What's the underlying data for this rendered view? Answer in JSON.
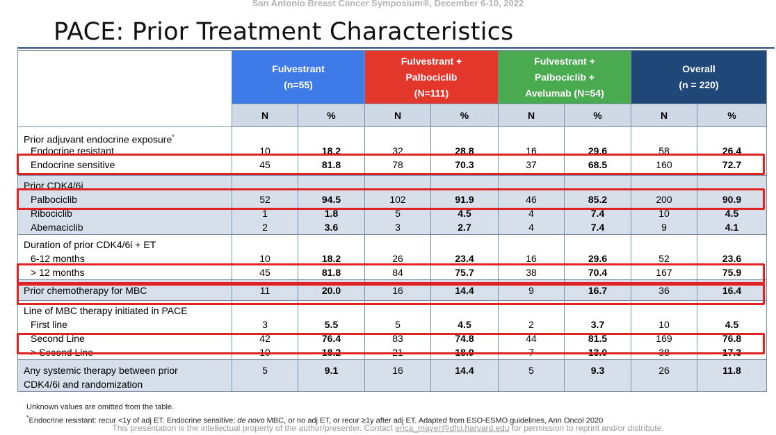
{
  "conference": "San Antonio Breast Cancer Symposium®, December 6-10, 2022",
  "title": "PACE: Prior Treatment Characteristics",
  "groups": [
    {
      "lines": [
        "Fulvestrant",
        "(n=55)"
      ],
      "color": "#3f7be8"
    },
    {
      "lines": [
        "Fulvestrant  +",
        "Palbociclib",
        "(N=111)"
      ],
      "color": "#e2372a"
    },
    {
      "lines": [
        "Fulvestrant +",
        "Palbociclib +",
        "Avelumab (N=54)"
      ],
      "color": "#4aaa4f"
    },
    {
      "lines": [
        "Overall",
        "(n = 220)"
      ],
      "color": "#1f4778"
    }
  ],
  "subheaders": [
    "N",
    "%",
    "N",
    "%",
    "N",
    "%",
    "N",
    "%"
  ],
  "sections": [
    {
      "header": "Prior adjuvant endocrine exposure",
      "header_sup": "*",
      "shade": "white",
      "rows": [
        {
          "label": "Endocrine resistant",
          "values": [
            "10",
            "18.2",
            "32",
            "28.8",
            "16",
            "29.6",
            "58",
            "26.4"
          ]
        },
        {
          "label": "Endocrine sensitive",
          "values": [
            "45",
            "81.8",
            "78",
            "70.3",
            "37",
            "68.5",
            "160",
            "72.7"
          ]
        }
      ]
    },
    {
      "header": "Prior CDK4/6i",
      "shade": "grey",
      "rows": [
        {
          "label": "Palbociclib",
          "values": [
            "52",
            "94.5",
            "102",
            "91.9",
            "46",
            "85.2",
            "200",
            "90.9"
          ]
        },
        {
          "label": "Ribociclib",
          "values": [
            "1",
            "1.8",
            "5",
            "4.5",
            "4",
            "7.4",
            "10",
            "4.5"
          ]
        },
        {
          "label": "Abemaciclib",
          "values": [
            "2",
            "3.6",
            "3",
            "2.7",
            "4",
            "7.4",
            "9",
            "4.1"
          ]
        }
      ]
    },
    {
      "header": "Duration of prior CDK4/6i + ET",
      "shade": "white",
      "rows": [
        {
          "label": "6-12 months",
          "values": [
            "10",
            "18.2",
            "26",
            "23.4",
            "16",
            "29.6",
            "52",
            "23.6"
          ]
        },
        {
          "label": "> 12 months",
          "values": [
            "45",
            "81.8",
            "84",
            "75.7",
            "38",
            "70.4",
            "167",
            "75.9"
          ]
        }
      ]
    },
    {
      "header": "",
      "shade": "grey",
      "rows": [
        {
          "label": "Prior chemotherapy for MBC",
          "values": [
            "11",
            "20.0",
            "16",
            "14.4",
            "9",
            "16.7",
            "36",
            "16.4"
          ],
          "flush": true
        }
      ]
    },
    {
      "header": "Line of MBC therapy initiated in PACE",
      "shade": "white",
      "rows": [
        {
          "label": "First line",
          "values": [
            "3",
            "5.5",
            "5",
            "4.5",
            "2",
            "3.7",
            "10",
            "4.5"
          ]
        },
        {
          "label": "Second Line",
          "values": [
            "42",
            "76.4",
            "83",
            "74.8",
            "44",
            "81.5",
            "169",
            "76.8"
          ]
        },
        {
          "label": "> Second Line",
          "values": [
            "10",
            "18.2",
            "21",
            "18.9",
            "7",
            "13.0",
            "38",
            "17.3"
          ]
        }
      ]
    },
    {
      "header": "",
      "shade": "grey",
      "rows": [
        {
          "label": "Any systemic therapy between prior",
          "label2": "CDK4/6i and randomization",
          "values": [
            "5",
            "9.1",
            "16",
            "14.4",
            "5",
            "9.3",
            "26",
            "11.8"
          ],
          "flush": true
        }
      ]
    }
  ],
  "notes": {
    "line1": "Unknown values are omitted from the table.",
    "line2_sup": "*",
    "line2_a": "Endocrine resistant: recur <1y of adj ET. Endocrine sensitive: ",
    "line2_italic": "de novo",
    "line2_b": " MBC, or no adj ET, or recur ≥1y after adj ET. Adapted from ESO-ESMO guidelines, Ann Oncol 2020",
    "ip_a": "This presentation is the intellectual property of the author/presenter. Contact ",
    "ip_email": "erica_mayer@dfci.harvard.edu",
    "ip_b": " for permission to reprint and/or distribute."
  }
}
